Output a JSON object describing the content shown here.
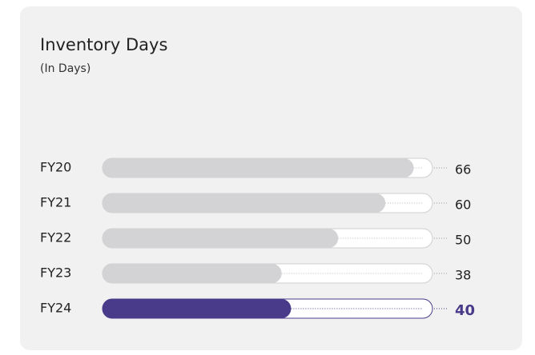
{
  "chart_data": {
    "type": "bar",
    "title": "Inventory Days",
    "subtitle": "(In Days)",
    "categories": [
      "FY20",
      "FY21",
      "FY22",
      "FY23",
      "FY24"
    ],
    "values": [
      66,
      60,
      50,
      38,
      40
    ],
    "colors": [
      "#d3d3d5",
      "#d3d3d5",
      "#d3d3d5",
      "#d3d3d5",
      "#4a3b8a"
    ],
    "xlim": [
      0,
      70
    ]
  }
}
